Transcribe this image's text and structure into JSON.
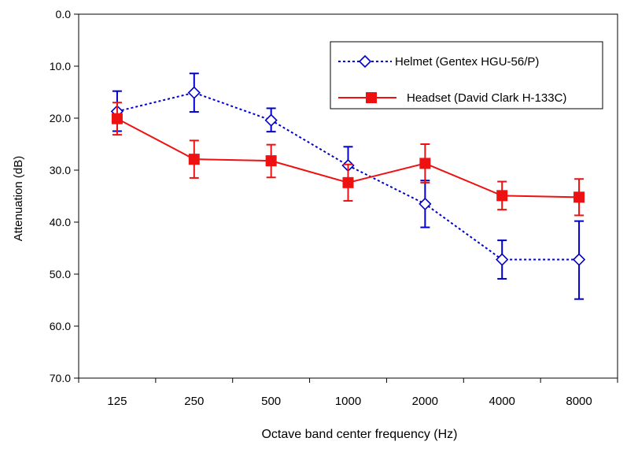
{
  "chart_data": {
    "type": "line",
    "xlabel": "Octave band center frequency (Hz)",
    "ylabel": "Attenuation (dB)",
    "categories": [
      "125",
      "250",
      "500",
      "1000",
      "2000",
      "4000",
      "8000"
    ],
    "y_ticks": [
      "0.0",
      "10.0",
      "20.0",
      "30.0",
      "40.0",
      "50.0",
      "60.0",
      "70.0"
    ],
    "ylim": [
      0,
      70
    ],
    "y_inverted": true,
    "grid": false,
    "legend_placement": "top-right",
    "series": [
      {
        "name": "Helmet (Gentex HGU-56/P)",
        "color": "#0000cc",
        "line_style": "dotted",
        "marker": "open-diamond",
        "values": [
          18.7,
          15.1,
          20.4,
          29.1,
          36.5,
          47.2,
          47.2
        ],
        "error_low": [
          14.8,
          11.4,
          18.1,
          25.5,
          32.0,
          43.5,
          39.8
        ],
        "error_high": [
          22.5,
          18.8,
          22.6,
          32.7,
          41.0,
          50.9,
          54.8
        ]
      },
      {
        "name": "Headset (David Clark H-133C)",
        "color": "#ee1111",
        "line_style": "solid",
        "marker": "filled-square",
        "values": [
          20.1,
          27.9,
          28.2,
          32.4,
          28.7,
          34.9,
          35.2
        ],
        "error_low": [
          17.0,
          24.3,
          25.1,
          28.9,
          25.0,
          32.2,
          31.7
        ],
        "error_high": [
          23.2,
          31.5,
          31.4,
          35.9,
          32.4,
          37.6,
          38.7
        ]
      }
    ]
  }
}
